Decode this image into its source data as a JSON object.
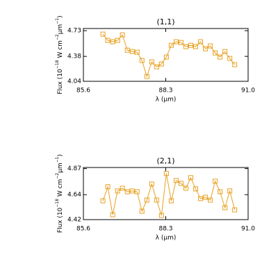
{
  "chart_data": [
    {
      "type": "line",
      "title": "(1,1)",
      "x_label": "λ (μm)",
      "y_label": [
        "Flux (10",
        "−18",
        " W cm",
        "−2",
        "μm",
        "−1",
        ")"
      ],
      "xlim": [
        85.6,
        91.0
      ],
      "xticks": [
        85.6,
        88.3,
        {
          "value": 91.0,
          "label": "91.0"
        }
      ],
      "ylim": [
        4.04,
        4.76
      ],
      "yticks": [
        4.04,
        4.38,
        4.73
      ],
      "series": [
        {
          "color": "#e8a020",
          "x": [
            86.24,
            86.4,
            86.56,
            86.72,
            86.88,
            87.04,
            87.2,
            87.36,
            87.52,
            87.68,
            87.84,
            88.0,
            88.16,
            88.32,
            88.48,
            88.64,
            88.8,
            88.96,
            89.12,
            89.28,
            89.44,
            89.6,
            89.76,
            89.92,
            90.08,
            90.24,
            90.4,
            90.56
          ],
          "values": [
            4.683,
            4.598,
            4.579,
            4.598,
            4.673,
            4.465,
            4.446,
            4.437,
            4.324,
            4.106,
            4.305,
            4.238,
            4.276,
            4.371,
            4.531,
            4.579,
            4.569,
            4.513,
            4.531,
            4.513,
            4.579,
            4.484,
            4.522,
            4.427,
            4.371,
            4.446,
            4.352,
            4.267
          ]
        }
      ]
    },
    {
      "type": "line",
      "title": "(2,1)",
      "x_label": "λ (μm)",
      "y_label": [
        "Flux (10",
        "−18",
        " W cm",
        "−2",
        "μm",
        "−1",
        ")"
      ],
      "xlim": [
        85.6,
        91.0
      ],
      "xticks": [
        85.6,
        88.3,
        {
          "value": 91.0,
          "label": "91.0"
        }
      ],
      "ylim": [
        4.42,
        4.88
      ],
      "yticks": [
        4.42,
        4.64,
        4.87
      ],
      "series": [
        {
          "color": "#e8a020",
          "x": [
            86.24,
            86.4,
            86.56,
            86.72,
            86.88,
            87.04,
            87.2,
            87.36,
            87.52,
            87.68,
            87.84,
            88.0,
            88.16,
            88.32,
            88.48,
            88.64,
            88.8,
            88.96,
            89.12,
            89.28,
            89.44,
            89.6,
            89.76,
            89.92,
            90.08,
            90.24,
            90.4,
            90.56
          ],
          "values": [
            4.586,
            4.71,
            4.463,
            4.673,
            4.697,
            4.666,
            4.673,
            4.666,
            4.494,
            4.592,
            4.734,
            4.592,
            4.457,
            4.827,
            4.586,
            4.765,
            4.74,
            4.697,
            4.79,
            4.691,
            4.605,
            4.617,
            4.592,
            4.759,
            4.666,
            4.525,
            4.673,
            4.506
          ]
        }
      ]
    }
  ]
}
